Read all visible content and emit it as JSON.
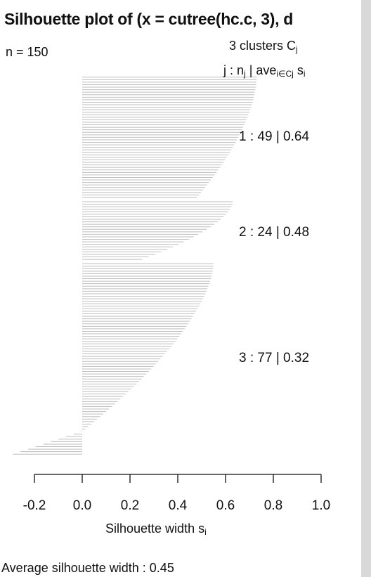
{
  "title": "Silhouette plot of (x = cutree(hc.c, 3), d",
  "n_label": "n = 150",
  "legend_line1": {
    "text": "3  clusters  C",
    "sub": "j"
  },
  "legend_line2": {
    "j": "j :  n",
    "j_sub": "j",
    "ave": " | ave",
    "ave_sub": "i∈Cj",
    "s": "  s",
    "s_sub": "i"
  },
  "xlabel": {
    "text": "Silhouette width s",
    "sub": "i"
  },
  "footer": "Average silhouette width :  0.45",
  "cluster_labels": [
    "1 :   49  |  0.64",
    "2 :   24  |  0.48",
    "3 :   77  |  0.32"
  ],
  "chart_data": {
    "type": "bar",
    "orientation": "horizontal",
    "xlim": [
      -0.2,
      1.0
    ],
    "xticks": [
      "-0.2",
      "0.0",
      "0.2",
      "0.4",
      "0.6",
      "0.8",
      "1.0"
    ],
    "bar_color": "#bebebe",
    "clusters": [
      {
        "id": 1,
        "n": 49,
        "ave": 0.64,
        "max": 0.73,
        "min": 0.48,
        "tail_min": 0.49
      },
      {
        "id": 2,
        "n": 24,
        "ave": 0.48,
        "max": 0.63,
        "min": 0.25,
        "tail_min": 0.25
      },
      {
        "id": 3,
        "n": 77,
        "ave": 0.32,
        "max": 0.55,
        "min": -0.29,
        "tail_min": 0.0
      }
    ]
  }
}
